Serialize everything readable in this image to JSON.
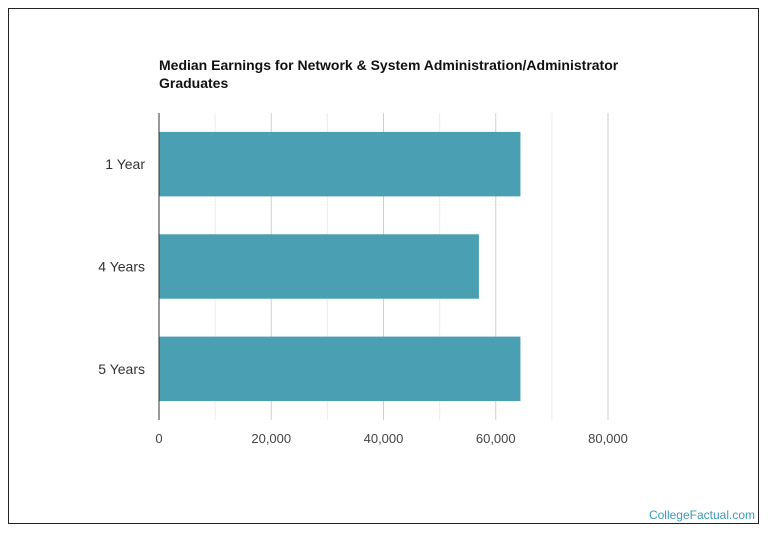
{
  "chart_data": {
    "type": "bar",
    "orientation": "horizontal",
    "title": "Median Earnings for Network & System Administration/Administrator Graduates",
    "categories": [
      "1 Year",
      "4 Years",
      "5 Years"
    ],
    "values": [
      64400,
      57000,
      64400
    ],
    "xlabel": "",
    "ylabel": "",
    "xlim": [
      0,
      80000
    ],
    "xticks": [
      0,
      20000,
      40000,
      60000,
      80000
    ],
    "xtick_labels": [
      "0",
      "20,000",
      "40,000",
      "60,000",
      "80,000"
    ],
    "grid": true,
    "bar_color": "#4aa0b2"
  },
  "watermark": "CollegeFactual.com"
}
